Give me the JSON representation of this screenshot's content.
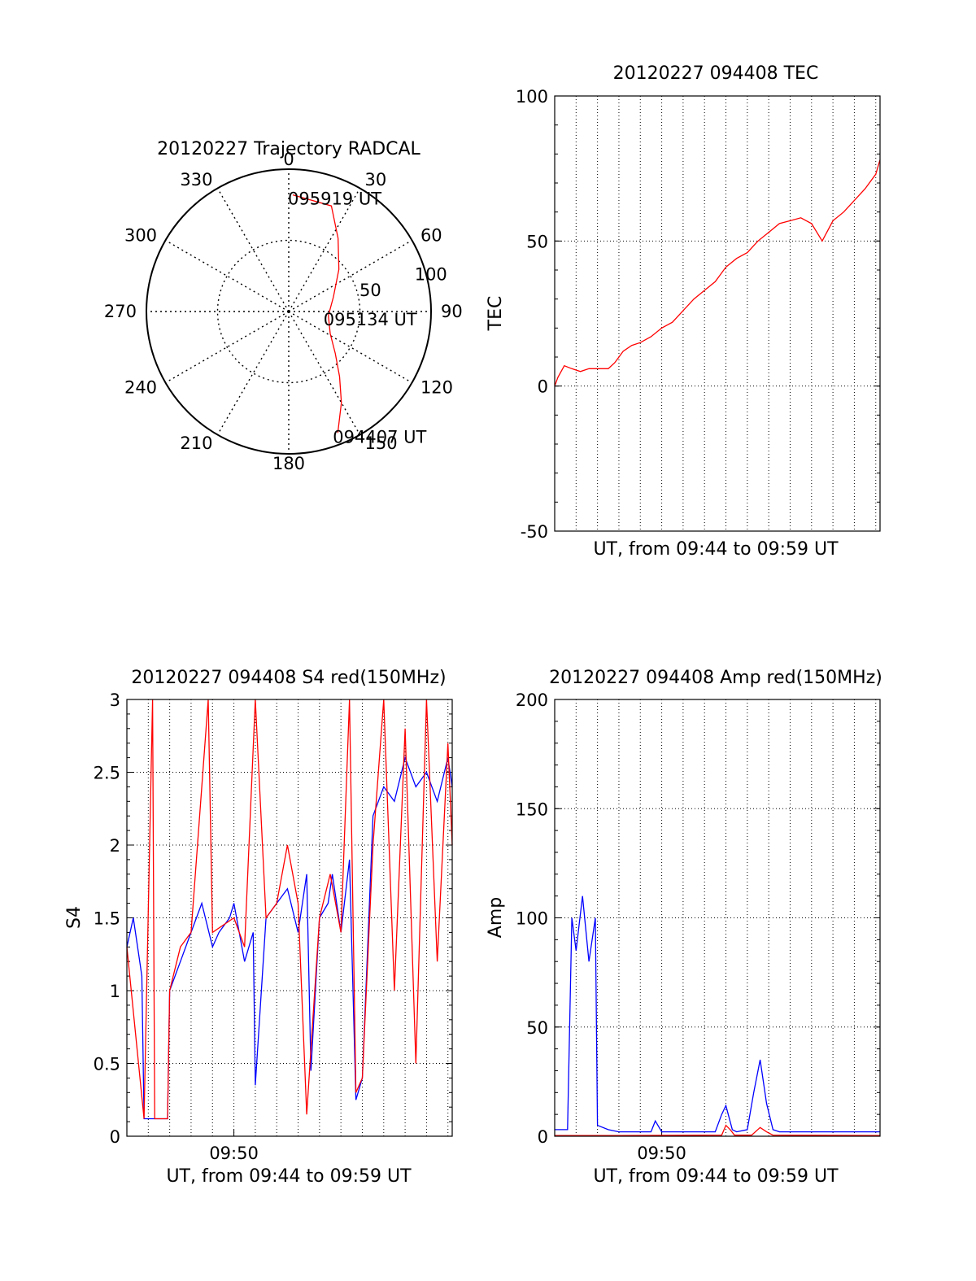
{
  "colors": {
    "red": "#ff0000",
    "blue": "#0000ff",
    "grid": "#000000",
    "background": "#ffffff"
  },
  "chart_data": [
    {
      "id": "trajectory",
      "type": "polar",
      "title": "20120227 Trajectory RADCAL",
      "angle_labels": [
        "0",
        "30",
        "60",
        "90",
        "120",
        "150",
        "180",
        "210",
        "240",
        "270",
        "300",
        "330"
      ],
      "radial_labels": [
        "50",
        "100"
      ],
      "rlim": [
        0,
        100
      ],
      "grid": true,
      "trajectory": {
        "color": "red",
        "points": [
          {
            "az": 158,
            "r": 92
          },
          {
            "az": 150,
            "r": 74
          },
          {
            "az": 142,
            "r": 58
          },
          {
            "az": 132,
            "r": 44
          },
          {
            "az": 118,
            "r": 33
          },
          {
            "az": 96,
            "r": 28
          },
          {
            "az": 72,
            "r": 33
          },
          {
            "az": 50,
            "r": 46
          },
          {
            "az": 34,
            "r": 62
          },
          {
            "az": 22,
            "r": 80
          },
          {
            "az": 2,
            "r": 82
          }
        ]
      },
      "annotations": [
        {
          "text": "095919 UT",
          "az": 2,
          "r": 82
        },
        {
          "text": "095134 UT",
          "az": 96,
          "r": 28
        },
        {
          "text": "094407 UT",
          "az": 158,
          "r": 92
        }
      ]
    },
    {
      "id": "tec",
      "type": "line",
      "title": "20120227 094408 TEC",
      "xlabel": "UT, from 09:44 to 09:59 UT",
      "ylabel": "TEC",
      "ylim": [
        -50,
        100
      ],
      "yticks": [
        "100",
        "50",
        "0",
        "-50"
      ],
      "xlim_minutes": [
        0,
        15.2
      ],
      "grid": true,
      "series": [
        {
          "color": "red",
          "x": [
            0,
            0.15,
            0.45,
            0.8,
            1.2,
            1.6,
            2.0,
            2.5,
            2.8,
            3.2,
            3.6,
            4.0,
            4.5,
            5.0,
            5.5,
            6.0,
            6.5,
            7.0,
            7.5,
            8.0,
            8.5,
            9.0,
            9.5,
            10.0,
            10.5,
            11.0,
            11.5,
            12.0,
            12.5,
            13.0,
            13.5,
            14.0,
            14.5,
            15.0,
            15.2
          ],
          "y": [
            0,
            3,
            7,
            6,
            5,
            6,
            6,
            6,
            8,
            12,
            14,
            15,
            17,
            20,
            22,
            26,
            30,
            33,
            36,
            41,
            44,
            46,
            50,
            53,
            56,
            57,
            58,
            56,
            50,
            57,
            60,
            64,
            68,
            73,
            78
          ]
        }
      ]
    },
    {
      "id": "s4",
      "type": "line",
      "title": "20120227 094408 S4 red(150MHz)",
      "xlabel": "UT, from 09:44 to 09:59 UT",
      "ylabel": "S4",
      "ylim": [
        0,
        3
      ],
      "yticks": [
        "3",
        "2.5",
        "2",
        "1.5",
        "1",
        "0.5",
        "0"
      ],
      "xtick_label": "09:50",
      "xtick_minute": 5,
      "xlim_minutes": [
        0,
        15.2
      ],
      "grid": true,
      "series": [
        {
          "color": "blue",
          "x": [
            0,
            0.3,
            0.6,
            0.7,
            0.8,
            1.2,
            1.6,
            1.9,
            2.0,
            2.5,
            3.0,
            3.5,
            4.0,
            4.3,
            4.8,
            5.0,
            5.5,
            5.9,
            6.0,
            6.5,
            7.0,
            7.5,
            8.0,
            8.4,
            8.6,
            9.0,
            9.4,
            9.6,
            10.0,
            10.4,
            10.7,
            11.0,
            11.5,
            12.0,
            12.5,
            13.0,
            13.5,
            14.0,
            14.5,
            15.0,
            15.2
          ],
          "y": [
            1.3,
            1.5,
            1.2,
            1.1,
            0.12,
            0.12,
            0.12,
            0.12,
            1.0,
            1.2,
            1.4,
            1.6,
            1.3,
            1.4,
            1.5,
            1.6,
            1.2,
            1.4,
            0.35,
            1.5,
            1.6,
            1.7,
            1.4,
            1.8,
            0.45,
            1.5,
            1.6,
            1.8,
            1.4,
            1.9,
            0.25,
            0.4,
            2.2,
            2.4,
            2.3,
            2.6,
            2.4,
            2.5,
            2.3,
            2.6,
            2.4
          ]
        },
        {
          "color": "red",
          "x": [
            0,
            0.8,
            1.2,
            1.3,
            1.9,
            2.0,
            2.5,
            3.0,
            3.8,
            4.0,
            5.0,
            5.5,
            6.0,
            6.5,
            7.0,
            7.5,
            8.0,
            8.4,
            9.0,
            9.5,
            10.0,
            10.4,
            10.7,
            11.0,
            11.5,
            12.0,
            12.5,
            13.0,
            13.5,
            14.0,
            14.5,
            15.0,
            15.2
          ],
          "y": [
            1.3,
            0.12,
            3.0,
            0.12,
            0.12,
            1.0,
            1.3,
            1.4,
            3.0,
            1.4,
            1.5,
            1.3,
            3.0,
            1.5,
            1.6,
            2.0,
            1.6,
            0.15,
            1.5,
            1.8,
            1.4,
            3.0,
            0.3,
            0.4,
            2.0,
            3.0,
            1.0,
            2.8,
            0.5,
            3.0,
            1.2,
            2.7,
            2.0
          ]
        }
      ]
    },
    {
      "id": "amp",
      "type": "line",
      "title": "20120227 094408 Amp red(150MHz)",
      "xlabel": "UT, from 09:44 to 09:59 UT",
      "ylabel": "Amp",
      "ylim": [
        0,
        200
      ],
      "yticks": [
        "200",
        "150",
        "100",
        "50",
        "0"
      ],
      "xtick_label": "09:50",
      "xtick_minute": 5,
      "xlim_minutes": [
        0,
        15.2
      ],
      "grid": true,
      "series": [
        {
          "color": "red",
          "x": [
            0,
            0.6,
            2.0,
            7.8,
            8.0,
            8.2,
            8.4,
            9.2,
            9.6,
            9.9,
            10.2,
            15.2
          ],
          "y": [
            0.3,
            0.3,
            0.3,
            0.5,
            5,
            3,
            0.5,
            0.5,
            4,
            2,
            0.5,
            0.3
          ]
        },
        {
          "color": "blue",
          "x": [
            0,
            0.3,
            0.6,
            0.8,
            1.0,
            1.3,
            1.6,
            1.9,
            2.0,
            2.5,
            3.0,
            4.5,
            4.7,
            5.0,
            6.0,
            7.5,
            7.8,
            8.0,
            8.3,
            8.5,
            9.0,
            9.3,
            9.6,
            9.9,
            10.2,
            10.5,
            12.0,
            14.0,
            15.2
          ],
          "y": [
            3,
            3,
            3,
            100,
            85,
            110,
            80,
            100,
            5,
            3,
            2,
            2,
            7,
            2,
            2,
            2,
            10,
            14,
            3,
            2,
            3,
            20,
            35,
            15,
            3,
            2,
            2,
            2,
            2
          ]
        }
      ]
    }
  ]
}
